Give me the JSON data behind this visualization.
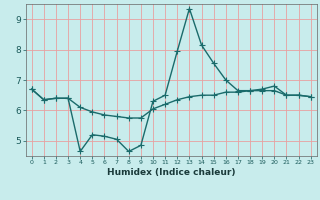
{
  "xlabel": "Humidex (Indice chaleur)",
  "ylabel": "",
  "bg_color": "#c8ecec",
  "grid_color": "#e8a0a0",
  "line_color": "#1a6b6b",
  "xlim": [
    -0.5,
    23.5
  ],
  "ylim": [
    4.5,
    9.5
  ],
  "xticks": [
    0,
    1,
    2,
    3,
    4,
    5,
    6,
    7,
    8,
    9,
    10,
    11,
    12,
    13,
    14,
    15,
    16,
    17,
    18,
    19,
    20,
    21,
    22,
    23
  ],
  "yticks": [
    5,
    6,
    7,
    8,
    9
  ],
  "series1_x": [
    0,
    1,
    2,
    3,
    4,
    5,
    6,
    7,
    8,
    9,
    10,
    11,
    12,
    13,
    14,
    15,
    16,
    17,
    18,
    19,
    20,
    21,
    22,
    23
  ],
  "series1_y": [
    6.7,
    6.35,
    6.4,
    6.4,
    4.65,
    5.2,
    5.15,
    5.05,
    4.65,
    4.85,
    6.3,
    6.5,
    7.95,
    9.35,
    8.15,
    7.55,
    7.0,
    6.65,
    6.65,
    6.7,
    6.8,
    6.5,
    6.5,
    6.45
  ],
  "series2_x": [
    0,
    1,
    2,
    3,
    4,
    5,
    6,
    7,
    8,
    9,
    10,
    11,
    12,
    13,
    14,
    15,
    16,
    17,
    18,
    19,
    20,
    21,
    22,
    23
  ],
  "series2_y": [
    6.7,
    6.35,
    6.4,
    6.4,
    6.1,
    5.95,
    5.85,
    5.8,
    5.75,
    5.75,
    6.05,
    6.2,
    6.35,
    6.45,
    6.5,
    6.5,
    6.6,
    6.6,
    6.65,
    6.65,
    6.65,
    6.5,
    6.5,
    6.45
  ],
  "marker": "+",
  "markersize": 4,
  "linewidth": 1.0
}
